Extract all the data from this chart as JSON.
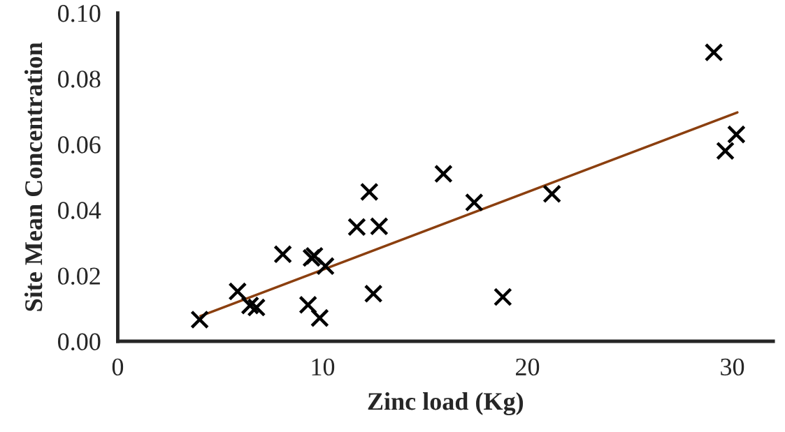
{
  "chart_data": {
    "type": "scatter",
    "xlabel": "Zinc load (Kg)",
    "ylabel": "Site Mean Concentration",
    "xlim": [
      0,
      32
    ],
    "xticks": [
      0,
      10,
      20,
      30
    ],
    "ylim": [
      0,
      0.1
    ],
    "yticks": [
      {
        "value": 0,
        "label": "0.00"
      },
      {
        "value": 0.02,
        "label": "0.02"
      },
      {
        "value": 0.04,
        "label": "0.04"
      },
      {
        "value": 0.06,
        "label": "0.06"
      },
      {
        "value": 0.08,
        "label": "0.08"
      },
      {
        "value": 0.1,
        "label": "0.10"
      }
    ],
    "grid": false,
    "legend": false,
    "series": [
      {
        "marker": "cross",
        "color": "#000000",
        "x": [
          4.0,
          5.85,
          6.46,
          6.77,
          8.06,
          9.29,
          9.46,
          9.6,
          9.86,
          10.14,
          11.67,
          12.28,
          12.48,
          12.76,
          15.9,
          17.4,
          18.8,
          21.2,
          29.1,
          29.66,
          30.2
        ],
        "values": [
          0.0066,
          0.0152,
          0.0109,
          0.0103,
          0.0265,
          0.0111,
          0.0254,
          0.026,
          0.0071,
          0.0229,
          0.0348,
          0.0455,
          0.0145,
          0.035,
          0.051,
          0.0423,
          0.0135,
          0.0449,
          0.088,
          0.058,
          0.063
        ]
      },
      {
        "type": "line",
        "marker": "none",
        "color": "#8b3f0f",
        "x": [
          4.04,
          30.25
        ],
        "values": [
          0.0077,
          0.0697
        ]
      }
    ]
  }
}
